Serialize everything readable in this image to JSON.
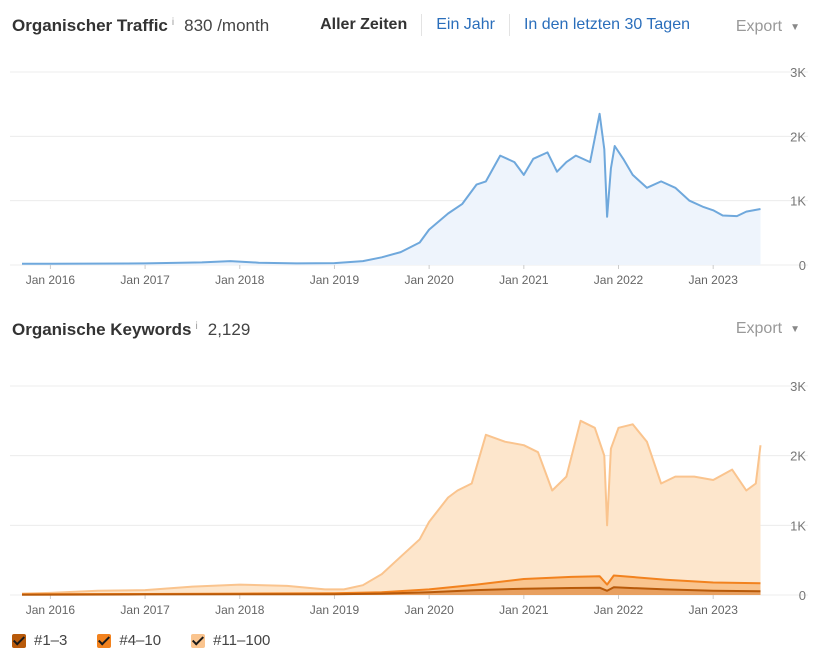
{
  "traffic": {
    "title": "Organischer Traffic",
    "info": "i",
    "metric": "830 /month",
    "ranges": [
      "Aller Zeiten",
      "Ein Jahr",
      "In den letzten 30 Tagen"
    ],
    "active_range": "Aller Zeiten",
    "export_label": "Export"
  },
  "keywords": {
    "title": "Organische Keywords",
    "info": "i",
    "metric": "2,129",
    "export_label": "Export"
  },
  "legend": {
    "items": [
      {
        "label": "#1–3",
        "color": "#b85a0a"
      },
      {
        "label": "#4–10",
        "color": "#f2821e"
      },
      {
        "label": "#11–100",
        "color": "#fac48e"
      }
    ]
  },
  "chart_data": [
    {
      "type": "area",
      "title": "Organischer Traffic",
      "x_ticks": [
        "Jan 2016",
        "Jan 2017",
        "Jan 2018",
        "Jan 2019",
        "Jan 2020",
        "Jan 2021",
        "Jan 2022",
        "Jan 2023"
      ],
      "y_ticks": [
        "3K",
        "2K",
        "1K",
        "0"
      ],
      "ylim": [
        0,
        3000
      ],
      "xlim": [
        2015.7,
        2023.6
      ],
      "line_color": "#6fa8dc",
      "fill_color": "#eef4fc",
      "series": [
        {
          "name": "Organischer Traffic",
          "x": [
            2015.7,
            2016.0,
            2017.0,
            2017.6,
            2017.9,
            2018.2,
            2018.6,
            2019.0,
            2019.3,
            2019.5,
            2019.7,
            2019.9,
            2020.0,
            2020.2,
            2020.35,
            2020.5,
            2020.6,
            2020.75,
            2020.9,
            2021.0,
            2021.1,
            2021.25,
            2021.35,
            2021.45,
            2021.55,
            2021.7,
            2021.8,
            2021.85,
            2021.88,
            2021.92,
            2021.96,
            2022.05,
            2022.15,
            2022.3,
            2022.45,
            2022.6,
            2022.75,
            2022.9,
            2023.0,
            2023.1,
            2023.25,
            2023.35,
            2023.5
          ],
          "values": [
            20,
            20,
            25,
            40,
            60,
            35,
            25,
            30,
            60,
            120,
            200,
            350,
            550,
            800,
            950,
            1250,
            1300,
            1700,
            1600,
            1400,
            1650,
            1750,
            1450,
            1600,
            1700,
            1600,
            2350,
            1800,
            750,
            1500,
            1850,
            1650,
            1400,
            1200,
            1300,
            1200,
            1000,
            900,
            850,
            770,
            760,
            830,
            870
          ]
        }
      ]
    },
    {
      "type": "area",
      "title": "Organische Keywords",
      "x_ticks": [
        "Jan 2016",
        "Jan 2017",
        "Jan 2018",
        "Jan 2019",
        "Jan 2020",
        "Jan 2021",
        "Jan 2022",
        "Jan 2023"
      ],
      "y_ticks": [
        "3K",
        "2K",
        "1K",
        "0"
      ],
      "ylim": [
        0,
        3000
      ],
      "xlim": [
        2015.7,
        2023.6
      ],
      "series": [
        {
          "name": "#11–100",
          "x": [
            2015.7,
            2016.0,
            2016.5,
            2017.0,
            2017.5,
            2018.0,
            2018.5,
            2018.9,
            2019.1,
            2019.3,
            2019.5,
            2019.7,
            2019.9,
            2020.0,
            2020.2,
            2020.3,
            2020.45,
            2020.6,
            2020.8,
            2021.0,
            2021.15,
            2021.3,
            2021.45,
            2021.6,
            2021.75,
            2021.85,
            2021.88,
            2021.92,
            2022.0,
            2022.15,
            2022.3,
            2022.45,
            2022.6,
            2022.8,
            2023.0,
            2023.2,
            2023.35,
            2023.45,
            2023.5
          ],
          "values": [
            20,
            30,
            60,
            70,
            120,
            150,
            130,
            80,
            80,
            140,
            300,
            550,
            800,
            1050,
            1400,
            1500,
            1600,
            2300,
            2200,
            2150,
            2050,
            1500,
            1700,
            2500,
            2400,
            2000,
            1000,
            2100,
            2400,
            2450,
            2200,
            1600,
            1700,
            1700,
            1650,
            1800,
            1500,
            1600,
            2150
          ]
        },
        {
          "name": "#4–10",
          "x": [
            2015.7,
            2017.0,
            2018.0,
            2019.0,
            2019.5,
            2020.0,
            2020.5,
            2021.0,
            2021.5,
            2021.8,
            2021.88,
            2021.95,
            2022.5,
            2023.0,
            2023.5
          ],
          "values": [
            10,
            15,
            20,
            25,
            40,
            80,
            150,
            230,
            260,
            270,
            150,
            280,
            220,
            180,
            170
          ]
        },
        {
          "name": "#1–3",
          "x": [
            2015.7,
            2017.0,
            2018.0,
            2019.0,
            2019.5,
            2020.0,
            2020.5,
            2021.0,
            2021.5,
            2021.8,
            2021.88,
            2021.95,
            2022.5,
            2023.0,
            2023.5
          ],
          "values": [
            5,
            8,
            10,
            12,
            20,
            40,
            70,
            90,
            100,
            105,
            60,
            110,
            80,
            60,
            55
          ]
        }
      ]
    }
  ]
}
